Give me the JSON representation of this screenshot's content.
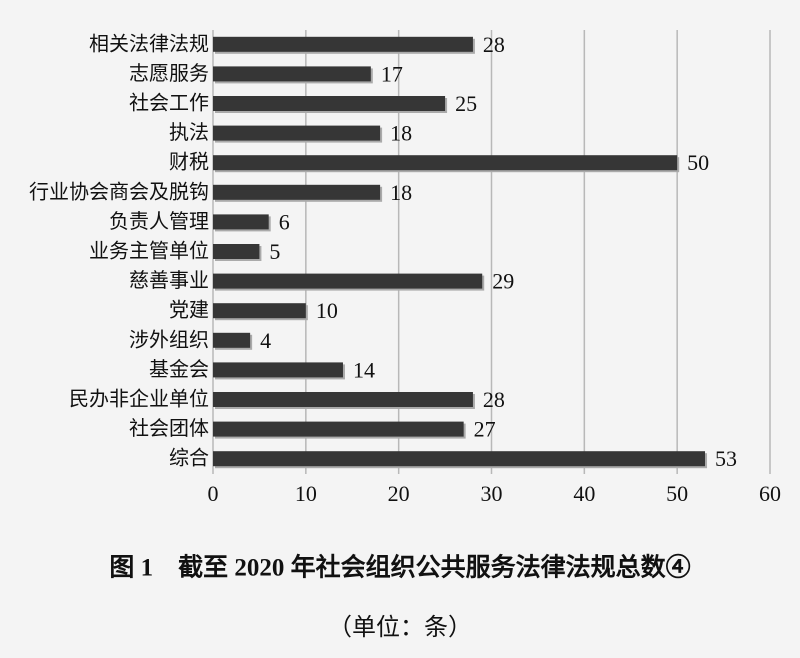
{
  "chart_data": {
    "type": "barh",
    "title": "图 1　截至 2020 年社会组织公共服务法律法规总数④",
    "subtitle": "（单位：条）",
    "categories": [
      "相关法律法规",
      "志愿服务",
      "社会工作",
      "执法",
      "财税",
      "行业协会商会及脱钩",
      "负责人管理",
      "业务主管单位",
      "慈善事业",
      "党建",
      "涉外组织",
      "基金会",
      "民办非企业单位",
      "社会团体",
      "综合"
    ],
    "values": [
      28,
      17,
      25,
      18,
      50,
      18,
      6,
      5,
      29,
      10,
      4,
      14,
      28,
      27,
      53
    ],
    "color": "#363636",
    "xlim": [
      0,
      60
    ],
    "xticks": [
      0,
      10,
      20,
      30,
      40,
      50,
      60
    ],
    "grid": true
  }
}
